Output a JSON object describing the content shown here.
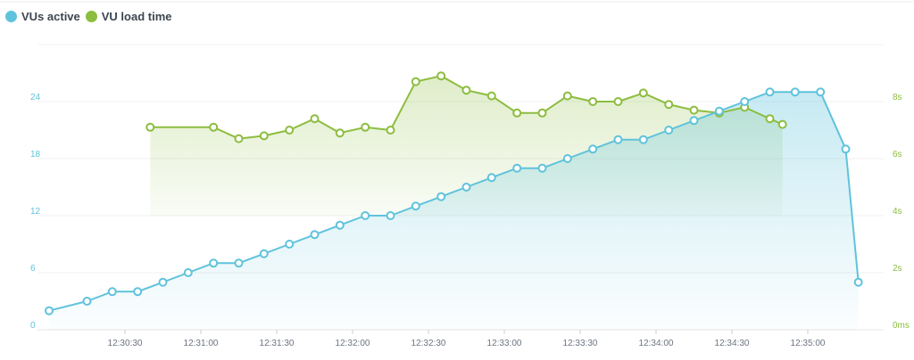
{
  "chart_data": {
    "type": "line",
    "legend_position": "top-left",
    "grid": true,
    "x_ticks": [
      "12:30:30",
      "12:31:00",
      "12:31:30",
      "12:32:00",
      "12:32:30",
      "12:33:00",
      "12:33:30",
      "12:34:00",
      "12:34:30",
      "12:35:00"
    ],
    "y_left": {
      "ticks": [
        "0",
        "6",
        "12",
        "18",
        "24"
      ],
      "range": [
        0,
        30
      ],
      "color": "#5fc3dc"
    },
    "y_right": {
      "ticks": [
        "0ms",
        "2s",
        "4s",
        "6s",
        "8s"
      ],
      "range": [
        0,
        10
      ],
      "color": "#8cbd3f"
    },
    "series": [
      {
        "name": "VUs active",
        "color": "#5fc3dc",
        "axis": "left",
        "fill": true,
        "points": [
          [
            "12:30:00",
            2
          ],
          [
            "12:30:15",
            3
          ],
          [
            "12:30:25",
            4
          ],
          [
            "12:30:35",
            4
          ],
          [
            "12:30:45",
            5
          ],
          [
            "12:30:55",
            6
          ],
          [
            "12:31:05",
            7
          ],
          [
            "12:31:15",
            7
          ],
          [
            "12:31:25",
            8
          ],
          [
            "12:31:35",
            9
          ],
          [
            "12:31:45",
            10
          ],
          [
            "12:31:55",
            11
          ],
          [
            "12:32:05",
            12
          ],
          [
            "12:32:15",
            12
          ],
          [
            "12:32:25",
            13
          ],
          [
            "12:32:35",
            14
          ],
          [
            "12:32:45",
            15
          ],
          [
            "12:32:55",
            16
          ],
          [
            "12:33:05",
            17
          ],
          [
            "12:33:15",
            17
          ],
          [
            "12:33:25",
            18
          ],
          [
            "12:33:35",
            19
          ],
          [
            "12:33:45",
            20
          ],
          [
            "12:33:55",
            20
          ],
          [
            "12:34:05",
            21
          ],
          [
            "12:34:15",
            22
          ],
          [
            "12:34:25",
            23
          ],
          [
            "12:34:35",
            24
          ],
          [
            "12:34:45",
            25
          ],
          [
            "12:34:55",
            25
          ],
          [
            "12:35:05",
            25
          ],
          [
            "12:35:15",
            19
          ],
          [
            "12:35:20",
            5
          ]
        ]
      },
      {
        "name": "VU load time",
        "color": "#8cbd3f",
        "axis": "right",
        "unit": "s",
        "fill": true,
        "points": [
          [
            "12:30:40",
            7.1
          ],
          [
            "12:31:05",
            7.1
          ],
          [
            "12:31:15",
            6.7
          ],
          [
            "12:31:25",
            6.8
          ],
          [
            "12:31:35",
            7.0
          ],
          [
            "12:31:45",
            7.4
          ],
          [
            "12:31:55",
            6.9
          ],
          [
            "12:32:05",
            7.1
          ],
          [
            "12:32:15",
            7.0
          ],
          [
            "12:32:25",
            8.7
          ],
          [
            "12:32:35",
            8.9
          ],
          [
            "12:32:45",
            8.4
          ],
          [
            "12:32:55",
            8.2
          ],
          [
            "12:33:05",
            7.6
          ],
          [
            "12:33:15",
            7.6
          ],
          [
            "12:33:25",
            8.2
          ],
          [
            "12:33:35",
            8.0
          ],
          [
            "12:33:45",
            8.0
          ],
          [
            "12:33:55",
            8.3
          ],
          [
            "12:34:05",
            7.9
          ],
          [
            "12:34:15",
            7.7
          ],
          [
            "12:34:25",
            7.6
          ],
          [
            "12:34:35",
            7.8
          ],
          [
            "12:34:45",
            7.4
          ],
          [
            "12:34:50",
            7.2
          ]
        ]
      }
    ]
  }
}
